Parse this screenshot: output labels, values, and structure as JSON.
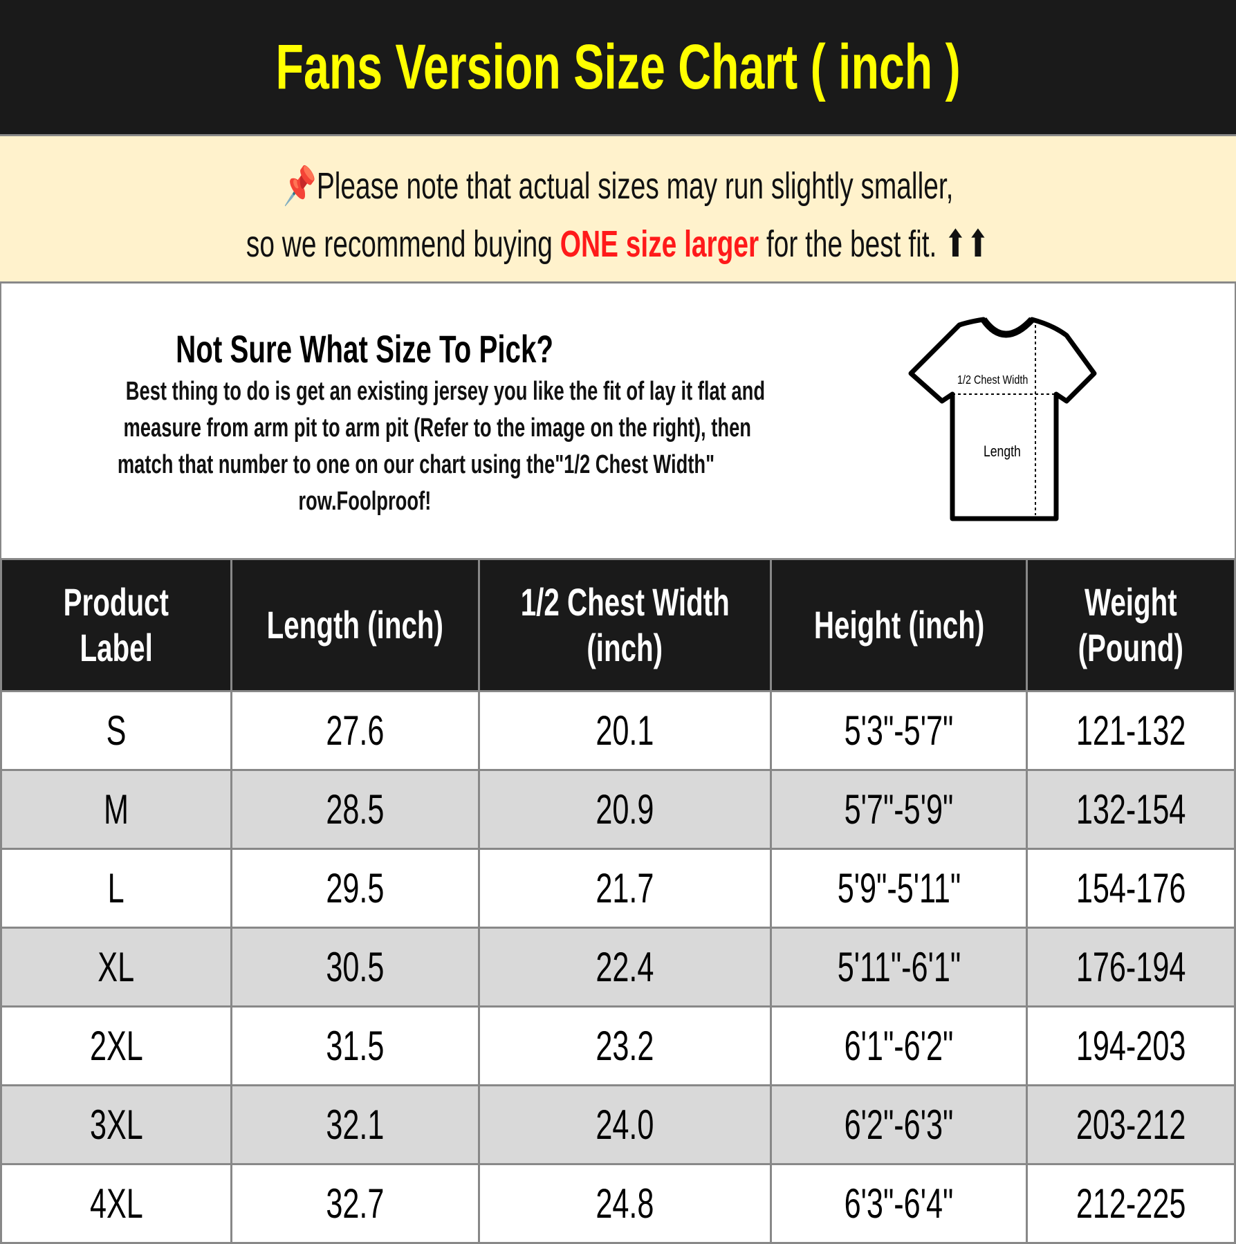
{
  "title": "Fans Version Size Chart ( inch )",
  "note": {
    "icon": "pushpin-icon",
    "line1": "Please note that actual sizes may run slightly smaller,",
    "line2_pre": "so we recommend buying ",
    "line2_highlight": "ONE size larger",
    "line2_post": " for the best fit. ⬆⬆",
    "highlight_color": "#ff1a1a"
  },
  "info": {
    "heading": "Not Sure What Size To Pick?",
    "body": [
      "Best thing to do is get an existing jersey you like the fit of lay it flat and",
      "measure from arm pit to arm pit (Refer to the image on the right), then",
      "match that number to one on our chart using the\"1/2 Chest Width\"",
      "row.Foolproof!"
    ],
    "diagram": {
      "chest_label": "1/2 Chest Width",
      "length_label": "Length"
    }
  },
  "table": {
    "headers": [
      [
        "Product",
        "Label"
      ],
      [
        "Length (inch)"
      ],
      [
        "1/2 Chest Width",
        "(inch)"
      ],
      [
        "Height (inch)"
      ],
      [
        "Weight",
        "(Pound)"
      ]
    ],
    "rows": [
      [
        "S",
        "27.6",
        "20.1",
        "5'3\"-5'7\"",
        "121-132"
      ],
      [
        "M",
        "28.5",
        "20.9",
        "5'7\"-5'9\"",
        "132-154"
      ],
      [
        "L",
        "29.5",
        "21.7",
        "5'9\"-5'11\"",
        "154-176"
      ],
      [
        "XL",
        "30.5",
        "22.4",
        "5'11\"-6'1\"",
        "176-194"
      ],
      [
        "2XL",
        "31.5",
        "23.2",
        "6'1\"-6'2\"",
        "194-203"
      ],
      [
        "3XL",
        "32.1",
        "24.0",
        "6'2\"-6'3\"",
        "203-212"
      ],
      [
        "4XL",
        "32.7",
        "24.8",
        "6'3\"-6'4\"",
        "212-225"
      ]
    ]
  }
}
